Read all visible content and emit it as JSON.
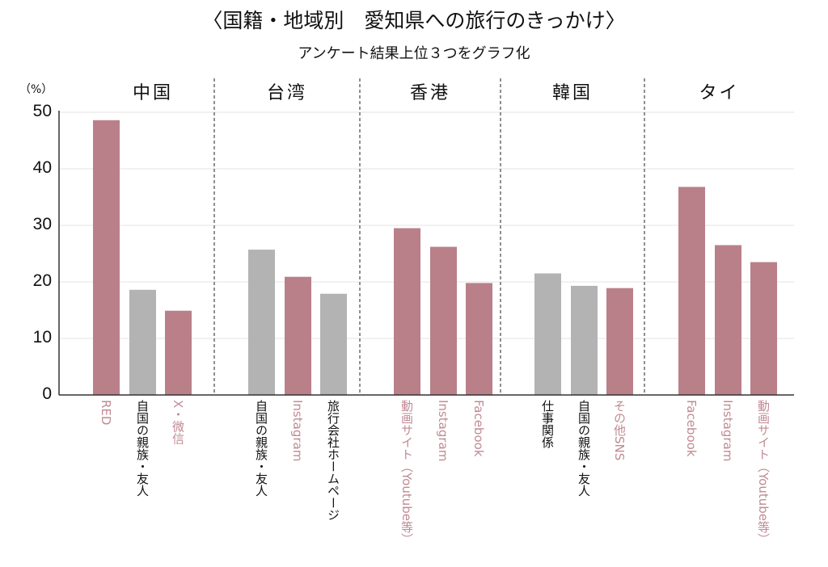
{
  "chart_data": {
    "type": "bar",
    "title": "〈国籍・地域別　愛知県への旅行のきっかけ〉",
    "subtitle": "アンケート結果上位３つをグラフ化",
    "ylabel": "（%）",
    "ylim": [
      0,
      50
    ],
    "yticks": [
      "0",
      "10",
      "20",
      "30",
      "40",
      "50"
    ],
    "grid": true,
    "colors": {
      "highlight": "#b9808a",
      "other": "#b3b3b3",
      "highlight_label": "#c08a94",
      "other_label": "#111111"
    },
    "groups": [
      {
        "name": "中国",
        "bars": [
          {
            "label": "RED",
            "value": 48.6,
            "highlight": true
          },
          {
            "label": "自国の親族・友人",
            "value": 18.6,
            "highlight": false
          },
          {
            "label": "X・微信",
            "value": 14.9,
            "highlight": true
          }
        ]
      },
      {
        "name": "台湾",
        "bars": [
          {
            "label": "自国の親族・友人",
            "value": 25.7,
            "highlight": false
          },
          {
            "label": "Instagram",
            "value": 20.9,
            "highlight": true
          },
          {
            "label": "旅行会社ホームページ",
            "value": 17.9,
            "highlight": false
          }
        ]
      },
      {
        "name": "香港",
        "bars": [
          {
            "label": "動画サイト（Youtube等）",
            "value": 29.5,
            "highlight": true
          },
          {
            "label": "Instagram",
            "value": 26.2,
            "highlight": true
          },
          {
            "label": "Facebook",
            "value": 19.8,
            "highlight": true
          }
        ]
      },
      {
        "name": "韓国",
        "bars": [
          {
            "label": "仕事関係",
            "value": 21.5,
            "highlight": false
          },
          {
            "label": "自国の親族・友人",
            "value": 19.3,
            "highlight": false
          },
          {
            "label": "その他SNS",
            "value": 18.9,
            "highlight": true
          }
        ]
      },
      {
        "name": "タイ",
        "bars": [
          {
            "label": "Facebook",
            "value": 36.8,
            "highlight": true
          },
          {
            "label": "Instagram",
            "value": 26.5,
            "highlight": true
          },
          {
            "label": "動画サイト（Youtube等）",
            "value": 23.5,
            "highlight": true
          }
        ]
      }
    ]
  }
}
